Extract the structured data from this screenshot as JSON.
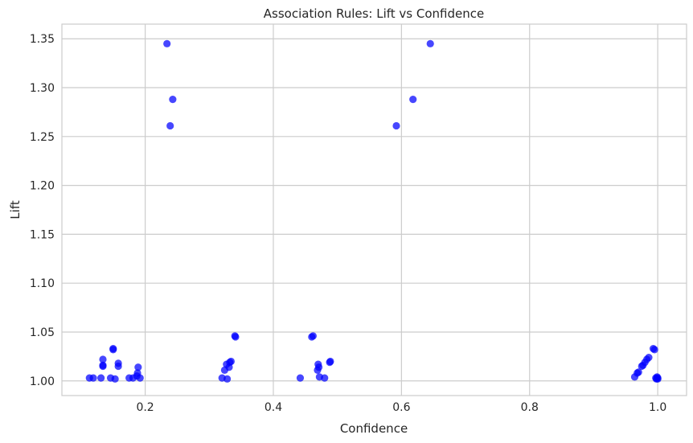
{
  "chart_data": {
    "type": "scatter",
    "title": "Association Rules: Lift vs Confidence",
    "xlabel": "Confidence",
    "ylabel": "Lift",
    "xlim": [
      0.07,
      1.045
    ],
    "ylim": [
      0.985,
      1.365
    ],
    "xticks": [
      0.2,
      0.4,
      0.6,
      0.8,
      1.0
    ],
    "xtick_labels": [
      "0.2",
      "0.4",
      "0.6",
      "0.8",
      "1.0"
    ],
    "yticks": [
      1.0,
      1.05,
      1.1,
      1.15,
      1.2,
      1.25,
      1.3,
      1.35
    ],
    "ytick_labels": [
      "1.00",
      "1.05",
      "1.10",
      "1.15",
      "1.20",
      "1.25",
      "1.30",
      "1.35"
    ],
    "grid": true,
    "marker_color": "#0000ff",
    "grid_color": "#cccccc",
    "points": [
      {
        "x": 0.234,
        "y": 1.345
      },
      {
        "x": 0.243,
        "y": 1.288
      },
      {
        "x": 0.239,
        "y": 1.261
      },
      {
        "x": 0.645,
        "y": 1.345
      },
      {
        "x": 0.618,
        "y": 1.288
      },
      {
        "x": 0.592,
        "y": 1.261
      },
      {
        "x": 0.113,
        "y": 1.003
      },
      {
        "x": 0.119,
        "y": 1.003
      },
      {
        "x": 0.131,
        "y": 1.003
      },
      {
        "x": 0.134,
        "y": 1.022
      },
      {
        "x": 0.134,
        "y": 1.016
      },
      {
        "x": 0.134,
        "y": 1.015
      },
      {
        "x": 0.146,
        "y": 1.003
      },
      {
        "x": 0.15,
        "y": 1.033
      },
      {
        "x": 0.15,
        "y": 1.032
      },
      {
        "x": 0.153,
        "y": 1.002
      },
      {
        "x": 0.158,
        "y": 1.018
      },
      {
        "x": 0.158,
        "y": 1.015
      },
      {
        "x": 0.175,
        "y": 1.003
      },
      {
        "x": 0.181,
        "y": 1.003
      },
      {
        "x": 0.187,
        "y": 1.005
      },
      {
        "x": 0.188,
        "y": 1.008
      },
      {
        "x": 0.189,
        "y": 1.014
      },
      {
        "x": 0.192,
        "y": 1.003
      },
      {
        "x": 0.32,
        "y": 1.003
      },
      {
        "x": 0.324,
        "y": 1.011
      },
      {
        "x": 0.327,
        "y": 1.017
      },
      {
        "x": 0.328,
        "y": 1.002
      },
      {
        "x": 0.331,
        "y": 1.014
      },
      {
        "x": 0.332,
        "y": 1.019
      },
      {
        "x": 0.334,
        "y": 1.02
      },
      {
        "x": 0.34,
        "y": 1.046
      },
      {
        "x": 0.341,
        "y": 1.045
      },
      {
        "x": 0.442,
        "y": 1.003
      },
      {
        "x": 0.46,
        "y": 1.045
      },
      {
        "x": 0.462,
        "y": 1.046
      },
      {
        "x": 0.469,
        "y": 1.011
      },
      {
        "x": 0.47,
        "y": 1.017
      },
      {
        "x": 0.471,
        "y": 1.014
      },
      {
        "x": 0.472,
        "y": 1.004
      },
      {
        "x": 0.48,
        "y": 1.003
      },
      {
        "x": 0.488,
        "y": 1.019
      },
      {
        "x": 0.489,
        "y": 1.02
      },
      {
        "x": 0.964,
        "y": 1.004
      },
      {
        "x": 0.968,
        "y": 1.008
      },
      {
        "x": 0.97,
        "y": 1.009
      },
      {
        "x": 0.975,
        "y": 1.015
      },
      {
        "x": 0.977,
        "y": 1.016
      },
      {
        "x": 0.98,
        "y": 1.019
      },
      {
        "x": 0.983,
        "y": 1.022
      },
      {
        "x": 0.986,
        "y": 1.024
      },
      {
        "x": 0.993,
        "y": 1.033
      },
      {
        "x": 0.995,
        "y": 1.032
      },
      {
        "x": 0.997,
        "y": 1.003
      },
      {
        "x": 0.998,
        "y": 1.002
      },
      {
        "x": 0.999,
        "y": 1.004
      },
      {
        "x": 1.0,
        "y": 1.003
      },
      {
        "x": 1.0,
        "y": 1.002
      }
    ]
  }
}
